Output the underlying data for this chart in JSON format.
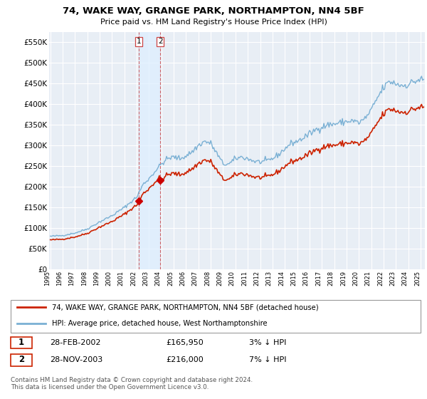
{
  "title": "74, WAKE WAY, GRANGE PARK, NORTHAMPTON, NN4 5BF",
  "subtitle": "Price paid vs. HM Land Registry's House Price Index (HPI)",
  "ytick_values": [
    0,
    50000,
    100000,
    150000,
    200000,
    250000,
    300000,
    350000,
    400000,
    450000,
    500000,
    550000
  ],
  "ylim": [
    0,
    575000
  ],
  "xlim_min": 1995.0,
  "xlim_max": 2025.25,
  "background_color": "#ffffff",
  "plot_bg_color": "#e8eef5",
  "grid_color": "#ffffff",
  "hpi_color": "#7ab0d4",
  "price_color": "#cc2200",
  "marker_color": "#cc0000",
  "vline_color": "#cc4444",
  "span_color": "#ddeeff",
  "purchase1": {
    "date_num": 2002.16,
    "price": 165950,
    "label": "1"
  },
  "purchase2": {
    "date_num": 2003.91,
    "price": 216000,
    "label": "2"
  },
  "legend_line1": "74, WAKE WAY, GRANGE PARK, NORTHAMPTON, NN4 5BF (detached house)",
  "legend_line2": "HPI: Average price, detached house, West Northamptonshire",
  "table_rows": [
    {
      "num": "1",
      "date": "28-FEB-2002",
      "price": "£165,950",
      "hpi": "3% ↓ HPI"
    },
    {
      "num": "2",
      "date": "28-NOV-2003",
      "price": "£216,000",
      "hpi": "7% ↓ HPI"
    }
  ],
  "footer": "Contains HM Land Registry data © Crown copyright and database right 2024.\nThis data is licensed under the Open Government Licence v3.0."
}
